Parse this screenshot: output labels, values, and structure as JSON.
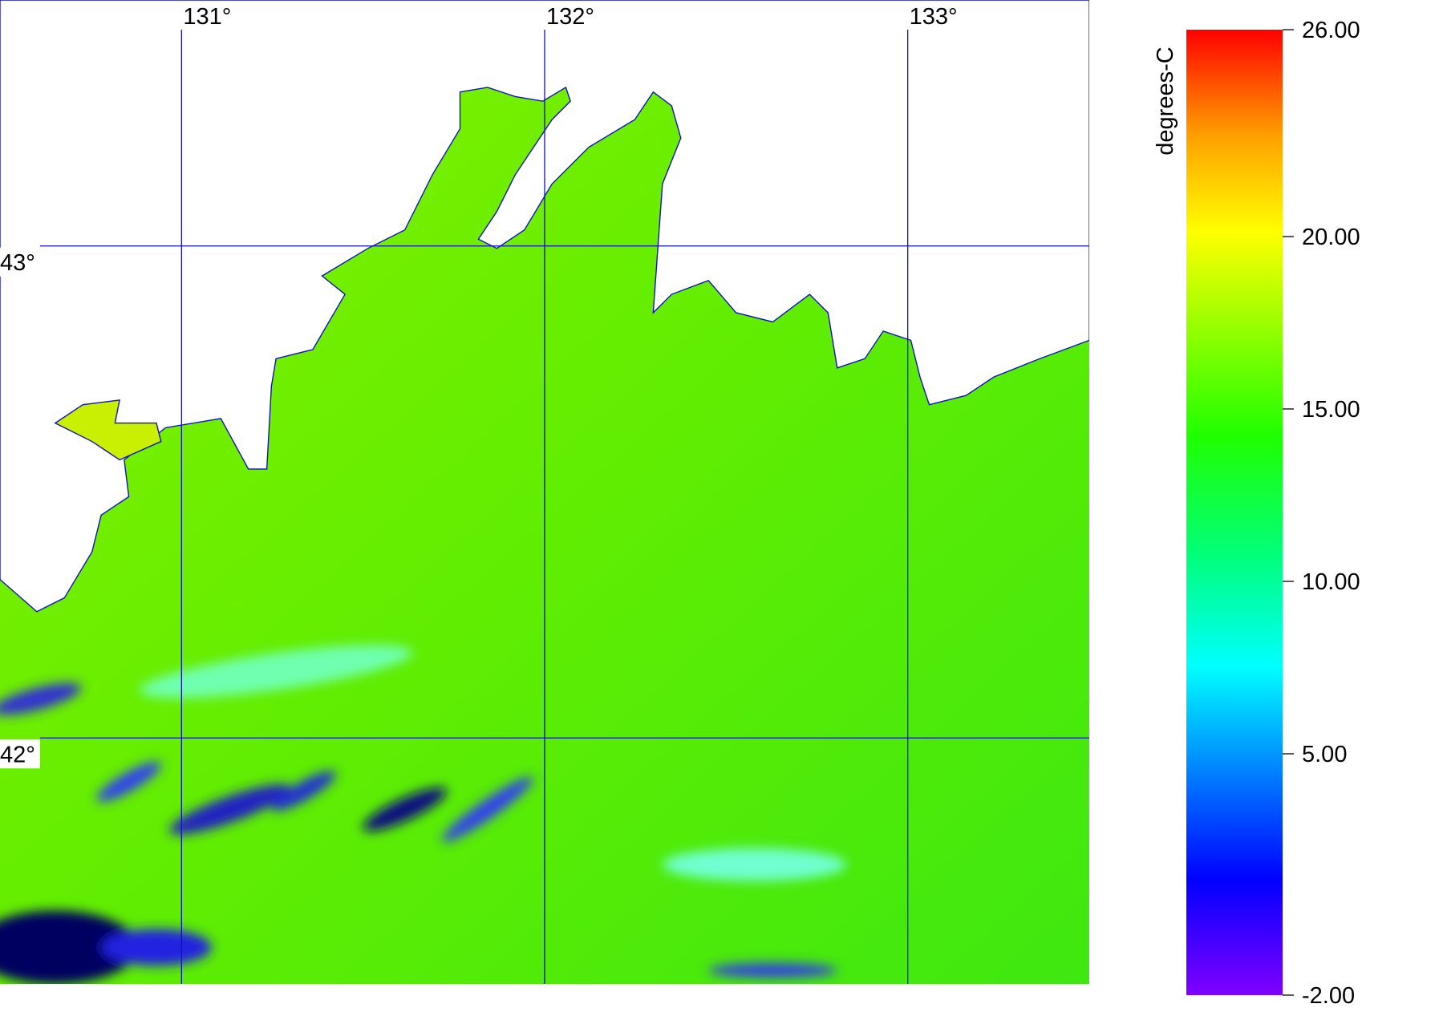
{
  "map": {
    "lonlim": [
      130.5,
      133.5
    ],
    "latlim": [
      41.5,
      43.5
    ],
    "lonticks": [
      {
        "value": 131,
        "label": "131°"
      },
      {
        "value": 132,
        "label": "132°"
      },
      {
        "value": 133,
        "label": "133°"
      }
    ],
    "latticks": [
      {
        "value": 43,
        "label": "43°"
      },
      {
        "value": 42,
        "label": "42°"
      }
    ],
    "grid_color": "#1010c0"
  },
  "colorbar": {
    "label": "degrees-C",
    "lim": [
      -2,
      26
    ],
    "ticks": [
      {
        "value": 26,
        "label": "26.00"
      },
      {
        "value": 20,
        "label": "20.00"
      },
      {
        "value": 15,
        "label": "15.00"
      },
      {
        "value": 10,
        "label": "10.00"
      },
      {
        "value": 5,
        "label": "5.00"
      },
      {
        "value": -2,
        "label": "-2.00"
      }
    ]
  }
}
